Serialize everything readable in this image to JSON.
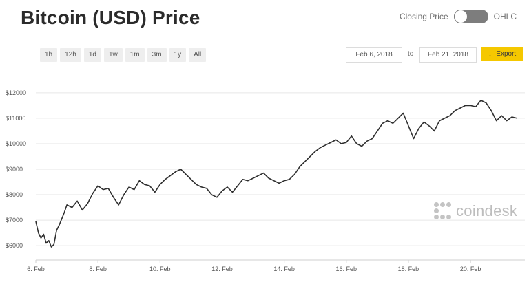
{
  "header": {
    "title": "Bitcoin (USD) Price",
    "toggle_left": "Closing Price",
    "toggle_right": "OHLC"
  },
  "ranges": [
    "1h",
    "12h",
    "1d",
    "1w",
    "1m",
    "3m",
    "1y",
    "All"
  ],
  "dates": {
    "from": "Feb 6, 2018",
    "to_label": "to",
    "to": "Feb 21, 2018"
  },
  "export_label": "Export",
  "watermark": "coindesk",
  "colors": {
    "line": "#2e2e2e",
    "grid": "#e6e6e6",
    "export": "#f5c800"
  },
  "chart_data": {
    "type": "line",
    "title": "Bitcoin (USD) Price",
    "xlabel": "",
    "ylabel": "",
    "xlim": [
      "2018-02-06",
      "2018-02-21"
    ],
    "ylim": [
      5600,
      12400
    ],
    "grid": true,
    "yticks": [
      6000,
      7000,
      8000,
      9000,
      10000,
      11000,
      12000
    ],
    "ytick_labels": [
      "$6000",
      "$7000",
      "$8000",
      "$9000",
      "$10000",
      "$11000",
      "$12000"
    ],
    "xtick_labels": [
      "6. Feb",
      "8. Feb",
      "10. Feb",
      "12. Feb",
      "14. Feb",
      "16. Feb",
      "18. Feb",
      "20. Feb"
    ],
    "xtick_dates": [
      "2018-02-06",
      "2018-02-08",
      "2018-02-10",
      "2018-02-12",
      "2018-02-14",
      "2018-02-16",
      "2018-02-18",
      "2018-02-20"
    ],
    "series": [
      {
        "name": "",
        "x": [
          "2018-02-06 00:00",
          "2018-02-06 02:00",
          "2018-02-06 04:00",
          "2018-02-06 06:00",
          "2018-02-06 08:00",
          "2018-02-06 10:00",
          "2018-02-06 12:00",
          "2018-02-06 14:00",
          "2018-02-06 16:00",
          "2018-02-06 18:00",
          "2018-02-06 20:00",
          "2018-02-06 22:00",
          "2018-02-07 00:00",
          "2018-02-07 04:00",
          "2018-02-07 08:00",
          "2018-02-07 12:00",
          "2018-02-07 16:00",
          "2018-02-07 20:00",
          "2018-02-08 00:00",
          "2018-02-08 04:00",
          "2018-02-08 08:00",
          "2018-02-08 12:00",
          "2018-02-08 16:00",
          "2018-02-08 20:00",
          "2018-02-09 00:00",
          "2018-02-09 04:00",
          "2018-02-09 08:00",
          "2018-02-09 12:00",
          "2018-02-09 16:00",
          "2018-02-09 20:00",
          "2018-02-10 00:00",
          "2018-02-10 04:00",
          "2018-02-10 08:00",
          "2018-02-10 12:00",
          "2018-02-10 16:00",
          "2018-02-10 20:00",
          "2018-02-11 00:00",
          "2018-02-11 04:00",
          "2018-02-11 08:00",
          "2018-02-11 12:00",
          "2018-02-11 16:00",
          "2018-02-11 20:00",
          "2018-02-12 00:00",
          "2018-02-12 04:00",
          "2018-02-12 08:00",
          "2018-02-12 12:00",
          "2018-02-12 16:00",
          "2018-02-12 20:00",
          "2018-02-13 00:00",
          "2018-02-13 04:00",
          "2018-02-13 08:00",
          "2018-02-13 12:00",
          "2018-02-13 16:00",
          "2018-02-13 20:00",
          "2018-02-14 00:00",
          "2018-02-14 04:00",
          "2018-02-14 08:00",
          "2018-02-14 12:00",
          "2018-02-14 16:00",
          "2018-02-14 20:00",
          "2018-02-15 00:00",
          "2018-02-15 04:00",
          "2018-02-15 08:00",
          "2018-02-15 12:00",
          "2018-02-15 16:00",
          "2018-02-15 20:00",
          "2018-02-16 00:00",
          "2018-02-16 04:00",
          "2018-02-16 08:00",
          "2018-02-16 12:00",
          "2018-02-16 16:00",
          "2018-02-16 20:00",
          "2018-02-17 00:00",
          "2018-02-17 04:00",
          "2018-02-17 08:00",
          "2018-02-17 12:00",
          "2018-02-17 16:00",
          "2018-02-17 20:00",
          "2018-02-18 00:00",
          "2018-02-18 04:00",
          "2018-02-18 08:00",
          "2018-02-18 12:00",
          "2018-02-18 16:00",
          "2018-02-18 20:00",
          "2018-02-19 00:00",
          "2018-02-19 04:00",
          "2018-02-19 08:00",
          "2018-02-19 12:00",
          "2018-02-19 16:00",
          "2018-02-19 20:00",
          "2018-02-20 00:00",
          "2018-02-20 04:00",
          "2018-02-20 08:00",
          "2018-02-20 12:00",
          "2018-02-20 16:00",
          "2018-02-20 20:00",
          "2018-02-21 00:00",
          "2018-02-21 04:00",
          "2018-02-21 08:00",
          "2018-02-21 12:00"
        ],
        "values": [
          6950,
          6500,
          6300,
          6450,
          6100,
          6200,
          5950,
          6050,
          6600,
          6800,
          7050,
          7300,
          7600,
          7500,
          7750,
          7400,
          7650,
          8050,
          8350,
          8200,
          8250,
          7900,
          7600,
          8000,
          8300,
          8200,
          8550,
          8400,
          8350,
          8100,
          8400,
          8600,
          8750,
          8900,
          9000,
          8800,
          8600,
          8400,
          8300,
          8250,
          8000,
          7900,
          8150,
          8300,
          8100,
          8350,
          8600,
          8550,
          8650,
          8750,
          8850,
          8650,
          8550,
          8450,
          8550,
          8600,
          8800,
          9100,
          9300,
          9500,
          9700,
          9850,
          9950,
          10050,
          10150,
          10000,
          10050,
          10300,
          10000,
          9900,
          10100,
          10200,
          10500,
          10800,
          10900,
          10800,
          11000,
          11200,
          10700,
          10200,
          10600,
          10850,
          10700,
          10500,
          10900,
          11000,
          11100,
          11300,
          11400,
          11500,
          11500,
          11450,
          11700,
          11600,
          11300,
          10900,
          11100,
          10900,
          11050,
          11000
        ]
      }
    ]
  }
}
